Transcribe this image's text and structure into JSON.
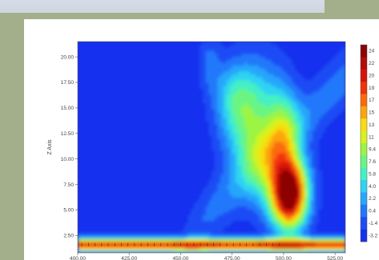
{
  "chart_data": {
    "type": "heatmap",
    "title": "",
    "xlabel": "",
    "ylabel": "Z Axis",
    "xlim": [
      400,
      530
    ],
    "ylim": [
      0.8,
      21.5
    ],
    "x_ticks": [
      "400.00",
      "425.00",
      "450.00",
      "475.00",
      "500.00",
      "525.00"
    ],
    "x_tick_values": [
      400,
      425,
      450,
      475,
      500,
      525
    ],
    "y_ticks": [
      "20.00",
      "17.50",
      "15.00",
      "12.50",
      "10.00",
      "7.50",
      "5.00",
      "2.50"
    ],
    "y_tick_values": [
      20,
      17.5,
      15,
      12.5,
      10,
      7.5,
      5,
      2.5
    ],
    "colorbar": {
      "ticks": [
        "24",
        "22",
        "20",
        "19",
        "17",
        "15",
        "13",
        "11",
        "9.4",
        "7.6",
        "5.8",
        "4.0",
        "2.2",
        "0.4",
        "-1.4",
        "-3.2"
      ],
      "min": -4,
      "max": 25,
      "colors": [
        "#1530ee",
        "#1b4cf5",
        "#2178fa",
        "#28a6fb",
        "#2ed3f2",
        "#45f0c4",
        "#6af582",
        "#9cf542",
        "#d8f21c",
        "#f8dd10",
        "#fda40c",
        "#fb6a0a",
        "#f0300a",
        "#d71208",
        "#b50a06",
        "#8c0505"
      ]
    },
    "features": [
      {
        "name": "main-peak",
        "x": 503,
        "y": 6.5,
        "value": 24
      },
      {
        "name": "upper-lobe",
        "x": 490,
        "y": 13.5,
        "value": 11
      },
      {
        "name": "baseline-band",
        "y": 1.6,
        "value": 20
      }
    ]
  }
}
